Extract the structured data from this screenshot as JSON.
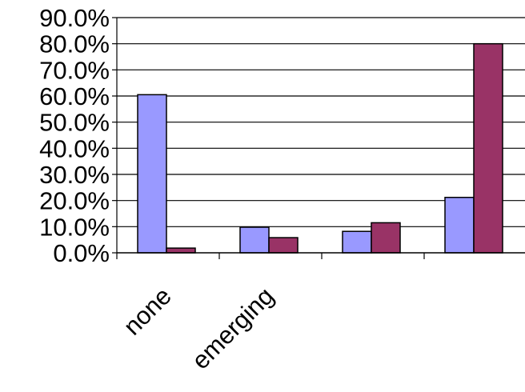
{
  "chart_data": {
    "type": "bar",
    "title": "",
    "xlabel": "",
    "ylabel": "",
    "categories": [
      "none",
      "emerging",
      "",
      ""
    ],
    "series": [
      {
        "values": [
          60.5,
          9.8,
          8.2,
          21.2
        ],
        "color": "#9999ff"
      },
      {
        "values": [
          1.8,
          5.8,
          11.5,
          80.0
        ],
        "color": "#993366"
      }
    ],
    "ylim": [
      0,
      90
    ],
    "yticks": [
      "0.0%",
      "10.0%",
      "20.0%",
      "30.0%",
      "40.0%",
      "50.0%",
      "60.0%",
      "70.0%",
      "80.0%",
      "90.0%"
    ],
    "grid": true,
    "legend": "none"
  }
}
